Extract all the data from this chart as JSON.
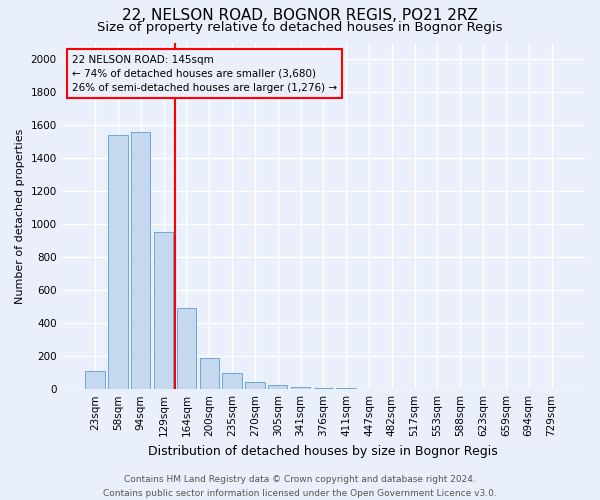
{
  "title": "22, NELSON ROAD, BOGNOR REGIS, PO21 2RZ",
  "subtitle": "Size of property relative to detached houses in Bognor Regis",
  "xlabel": "Distribution of detached houses by size in Bognor Regis",
  "ylabel": "Number of detached properties",
  "footer_line1": "Contains HM Land Registry data © Crown copyright and database right 2024.",
  "footer_line2": "Contains public sector information licensed under the Open Government Licence v3.0.",
  "categories": [
    "23sqm",
    "58sqm",
    "94sqm",
    "129sqm",
    "164sqm",
    "200sqm",
    "235sqm",
    "270sqm",
    "305sqm",
    "341sqm",
    "376sqm",
    "411sqm",
    "447sqm",
    "482sqm",
    "517sqm",
    "553sqm",
    "588sqm",
    "623sqm",
    "659sqm",
    "694sqm",
    "729sqm"
  ],
  "values": [
    110,
    1540,
    1560,
    950,
    490,
    190,
    100,
    45,
    25,
    15,
    8,
    5,
    3,
    0,
    0,
    0,
    0,
    0,
    0,
    0,
    0
  ],
  "bar_color": "#c5d8f0",
  "bar_edge_color": "#6aaad4",
  "red_line_x": 3.5,
  "annotation_line1": "22 NELSON ROAD: 145sqm",
  "annotation_line2": "← 74% of detached houses are smaller (3,680)",
  "annotation_line3": "26% of semi-detached houses are larger (1,276) →",
  "ylim": [
    0,
    2100
  ],
  "bg_color": "#eaf0fb",
  "grid_color": "#ffffff",
  "title_fontsize": 11,
  "subtitle_fontsize": 9.5,
  "ylabel_fontsize": 8,
  "xlabel_fontsize": 9,
  "tick_fontsize": 7.5,
  "footer_fontsize": 6.5,
  "annot_fontsize": 7.5
}
